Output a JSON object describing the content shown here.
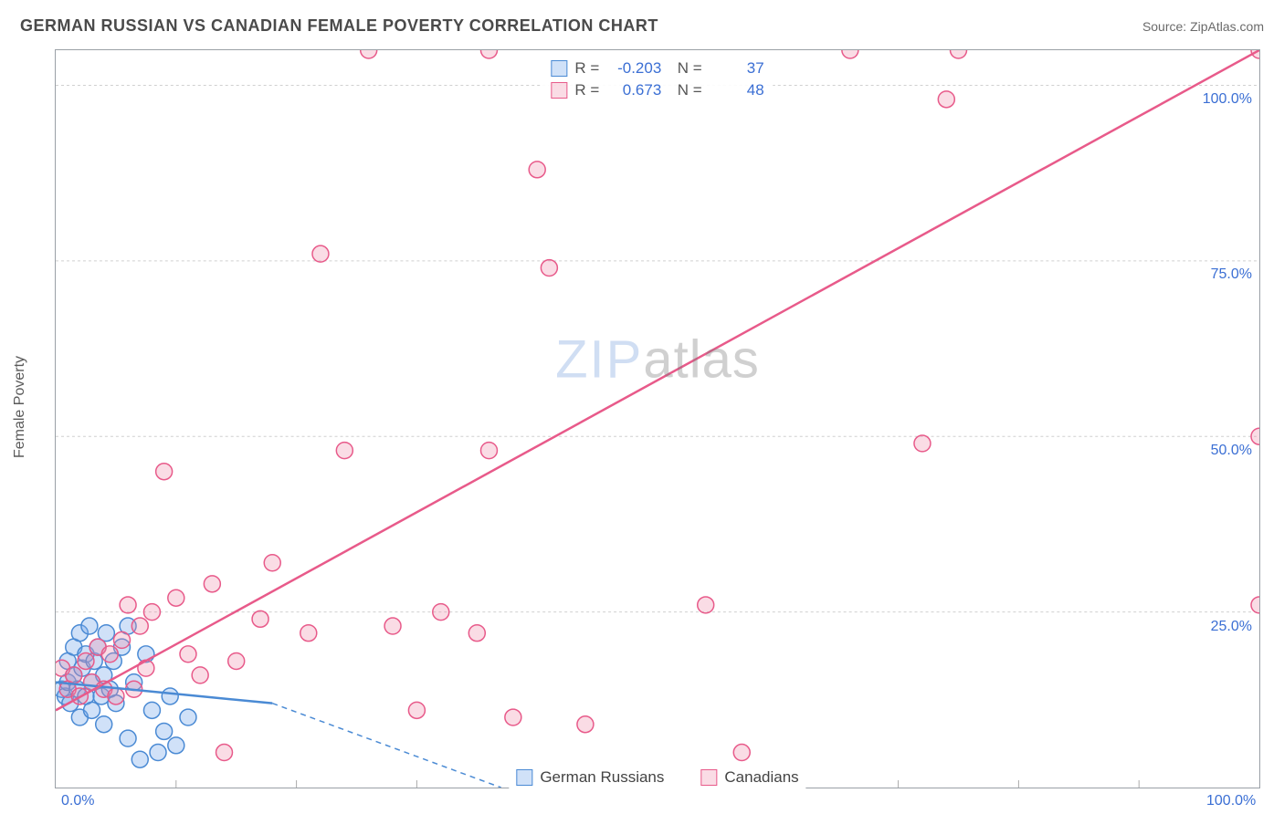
{
  "title": "GERMAN RUSSIAN VS CANADIAN FEMALE POVERTY CORRELATION CHART",
  "source": "Source: ZipAtlas.com",
  "y_axis_label": "Female Poverty",
  "watermark": {
    "zip": "ZIP",
    "atlas": "atlas"
  },
  "chart": {
    "type": "scatter",
    "xlim": [
      0,
      100
    ],
    "ylim": [
      0,
      105
    ],
    "x_ticks": [
      0,
      100
    ],
    "x_tick_labels": [
      "0.0%",
      "100.0%"
    ],
    "y_ticks": [
      25,
      50,
      75,
      100
    ],
    "y_tick_labels": [
      "25.0%",
      "50.0%",
      "75.0%",
      "100.0%"
    ],
    "tick_color": "#3b6fd4",
    "grid_color": "#d0d0d0",
    "grid_dash": "3,3",
    "background_color": "#ffffff",
    "marker_radius": 9,
    "marker_stroke_width": 1.5,
    "line_width": 2.5,
    "series": [
      {
        "name": "German Russians",
        "fill": "rgba(120,170,235,0.35)",
        "stroke": "#4a8ad4",
        "R": "-0.203",
        "N": "37",
        "trend": {
          "x1": 0,
          "y1": 15,
          "x2": 18,
          "y2": 12,
          "solid_until": 18,
          "dash_to_x": 37,
          "dash_to_y": 0
        },
        "points": [
          [
            0.5,
            14
          ],
          [
            0.8,
            13
          ],
          [
            1,
            15
          ],
          [
            1,
            18
          ],
          [
            1.2,
            12
          ],
          [
            1.5,
            20
          ],
          [
            1.5,
            16
          ],
          [
            1.8,
            14
          ],
          [
            2,
            22
          ],
          [
            2,
            10
          ],
          [
            2.2,
            17
          ],
          [
            2.5,
            19
          ],
          [
            2.5,
            13
          ],
          [
            2.8,
            23
          ],
          [
            3,
            15
          ],
          [
            3,
            11
          ],
          [
            3.2,
            18
          ],
          [
            3.5,
            20
          ],
          [
            3.8,
            13
          ],
          [
            4,
            16
          ],
          [
            4,
            9
          ],
          [
            4.2,
            22
          ],
          [
            4.5,
            14
          ],
          [
            4.8,
            18
          ],
          [
            5,
            12
          ],
          [
            5.5,
            20
          ],
          [
            6,
            23
          ],
          [
            6,
            7
          ],
          [
            6.5,
            15
          ],
          [
            7,
            4
          ],
          [
            7.5,
            19
          ],
          [
            8,
            11
          ],
          [
            8.5,
            5
          ],
          [
            9,
            8
          ],
          [
            9.5,
            13
          ],
          [
            10,
            6
          ],
          [
            11,
            10
          ]
        ]
      },
      {
        "name": "Canadians",
        "fill": "rgba(240,140,170,0.30)",
        "stroke": "#e85a8a",
        "R": "0.673",
        "N": "48",
        "trend": {
          "x1": 0,
          "y1": 11,
          "x2": 100,
          "y2": 105,
          "solid_until": 100
        },
        "points": [
          [
            0.5,
            17
          ],
          [
            1,
            14
          ],
          [
            1.5,
            16
          ],
          [
            2,
            13
          ],
          [
            2.5,
            18
          ],
          [
            3,
            15
          ],
          [
            3.5,
            20
          ],
          [
            4,
            14
          ],
          [
            4.5,
            19
          ],
          [
            5,
            13
          ],
          [
            5.5,
            21
          ],
          [
            6,
            26
          ],
          [
            6.5,
            14
          ],
          [
            7,
            23
          ],
          [
            7.5,
            17
          ],
          [
            8,
            25
          ],
          [
            9,
            45
          ],
          [
            10,
            27
          ],
          [
            11,
            19
          ],
          [
            12,
            16
          ],
          [
            13,
            29
          ],
          [
            14,
            5
          ],
          [
            15,
            18
          ],
          [
            17,
            24
          ],
          [
            18,
            32
          ],
          [
            21,
            22
          ],
          [
            22,
            76
          ],
          [
            24,
            48
          ],
          [
            26,
            105
          ],
          [
            28,
            23
          ],
          [
            30,
            11
          ],
          [
            32,
            25
          ],
          [
            35,
            22
          ],
          [
            36,
            48
          ],
          [
            38,
            10
          ],
          [
            40,
            88
          ],
          [
            41,
            74
          ],
          [
            44,
            9
          ],
          [
            54,
            26
          ],
          [
            57,
            5
          ],
          [
            66,
            105
          ],
          [
            72,
            49
          ],
          [
            74,
            98
          ],
          [
            75,
            105
          ],
          [
            100,
            26
          ],
          [
            100,
            50
          ],
          [
            100,
            105
          ],
          [
            36,
            105
          ]
        ]
      }
    ]
  },
  "legend": {
    "items": [
      {
        "label": "German Russians",
        "fill": "rgba(120,170,235,0.35)",
        "stroke": "#4a8ad4"
      },
      {
        "label": "Canadians",
        "fill": "rgba(240,140,170,0.30)",
        "stroke": "#e85a8a"
      }
    ]
  }
}
